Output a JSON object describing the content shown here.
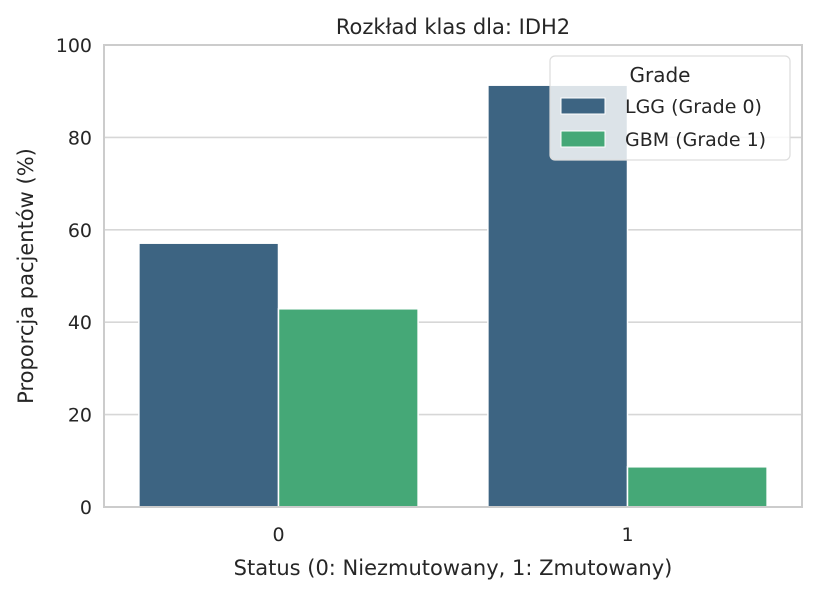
{
  "chart_data": {
    "type": "bar",
    "title": "Rozkład klas dla: IDH2",
    "xlabel": "Status (0: Niezmutowany, 1: Zmutowany)",
    "ylabel": "Proporcja pacjentów (%)",
    "categories": [
      "0",
      "1"
    ],
    "ylim": [
      0,
      100
    ],
    "yticks": [
      0,
      20,
      40,
      60,
      80,
      100
    ],
    "grid": true,
    "legend": {
      "title": "Grade",
      "placement": "top-right"
    },
    "series": [
      {
        "name": "LGG (Grade 0)",
        "color": "#3d6482",
        "values": [
          57.1,
          91.3
        ]
      },
      {
        "name": "GBM (Grade 1)",
        "color": "#45a877",
        "values": [
          42.9,
          8.7
        ]
      }
    ]
  }
}
